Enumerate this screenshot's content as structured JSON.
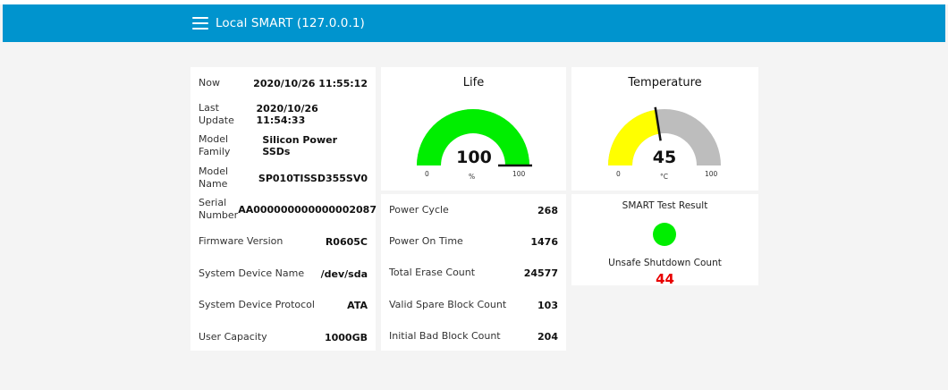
{
  "app": {
    "title": "Local SMART (127.0.0.1)"
  },
  "info": [
    {
      "label": "Now",
      "value": "2020/10/26 11:55:12"
    },
    {
      "label": "Last Update",
      "value": "2020/10/26 11:54:33"
    },
    {
      "label": "Model Family",
      "value": "Silicon Power SSDs"
    },
    {
      "label": "Model Name",
      "value": "SP010TISSD355SV0"
    },
    {
      "label": "Serial Number",
      "value": "AA000000000000002087"
    },
    {
      "label": "Firmware Version",
      "value": "R0605C"
    },
    {
      "label": "System Device Name",
      "value": "/dev/sda"
    },
    {
      "label": "System Device Protocol",
      "value": "ATA"
    },
    {
      "label": "User Capacity",
      "value": "1000GB"
    }
  ],
  "life": {
    "title": "Life",
    "value": 100,
    "value_text": "100",
    "unit": "%",
    "min": 0,
    "max": 100,
    "min_text": "0",
    "max_text": "100",
    "color": "#00ee00",
    "track": "#bdbdbd"
  },
  "temperature": {
    "title": "Temperature",
    "value": 45,
    "value_text": "45",
    "unit": "°C",
    "min": 0,
    "max": 100,
    "min_text": "0",
    "max_text": "100",
    "color": "#ffff00",
    "track": "#bdbdbd"
  },
  "counters": [
    {
      "label": "Power Cycle",
      "value": "268"
    },
    {
      "label": "Power On Time",
      "value": "1476"
    },
    {
      "label": "Total Erase Count",
      "value": "24577"
    },
    {
      "label": "Valid Spare Block Count",
      "value": "103"
    },
    {
      "label": "Initial Bad Block Count",
      "value": "204"
    }
  ],
  "smart": {
    "test_label": "SMART Test Result",
    "status_color": "#00ee00",
    "unsafe_label": "Unsafe Shutdown Count",
    "unsafe_value": "44",
    "unsafe_color": "#e80000"
  }
}
